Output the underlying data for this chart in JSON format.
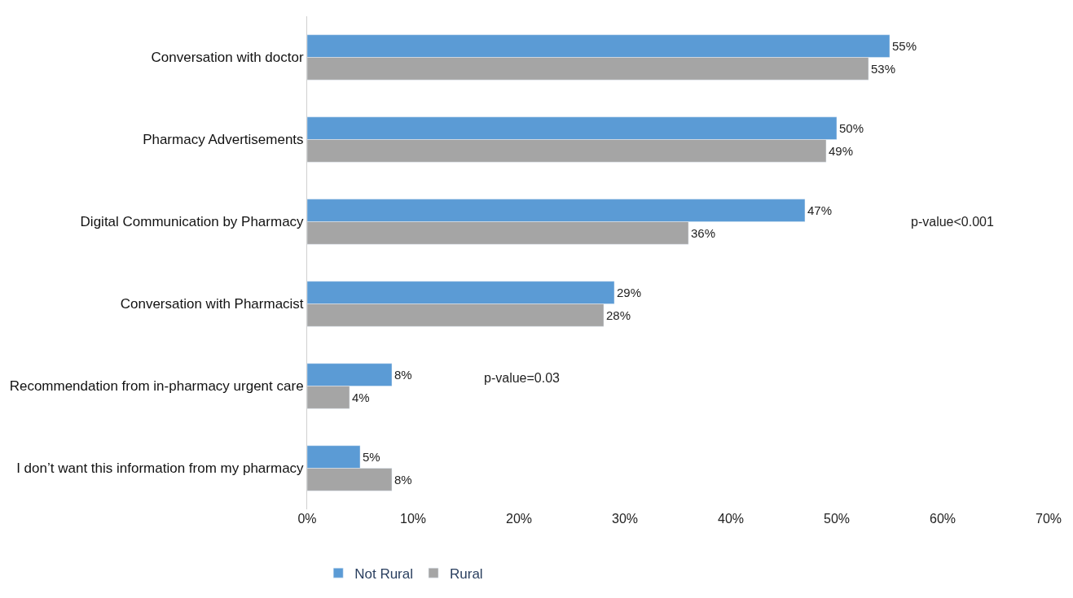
{
  "chart_data": {
    "type": "bar",
    "orientation": "horizontal",
    "categories": [
      "Conversation with doctor",
      "Pharmacy Advertisements",
      "Digital Communication by Pharmacy",
      "Conversation with Pharmacist",
      "Recommendation from in-pharmacy urgent care",
      "I don’t want this information from my pharmacy"
    ],
    "series": [
      {
        "name": "Not Rural",
        "color": "#5b9bd5",
        "values": [
          55,
          50,
          47,
          29,
          8,
          5
        ],
        "value_labels": [
          "55%",
          "50%",
          "47%",
          "29%",
          "8%",
          "5%"
        ]
      },
      {
        "name": "Rural",
        "color": "#a5a5a5",
        "values": [
          53,
          49,
          36,
          28,
          4,
          8
        ],
        "value_labels": [
          "53%",
          "49%",
          "36%",
          "28%",
          "4%",
          "8%"
        ]
      }
    ],
    "xlim": [
      0,
      70
    ],
    "xticks": [
      {
        "value": 0,
        "label": "0%"
      },
      {
        "value": 10,
        "label": "10%"
      },
      {
        "value": 20,
        "label": "20%"
      },
      {
        "value": 30,
        "label": "30%"
      },
      {
        "value": 40,
        "label": "40%"
      },
      {
        "value": 50,
        "label": "50%"
      },
      {
        "value": 60,
        "label": "60%"
      },
      {
        "value": 70,
        "label": "70%"
      }
    ],
    "annotations": [
      "p-value<0.001",
      "p-value=0.03"
    ],
    "grid": false,
    "legend": "bottom"
  }
}
